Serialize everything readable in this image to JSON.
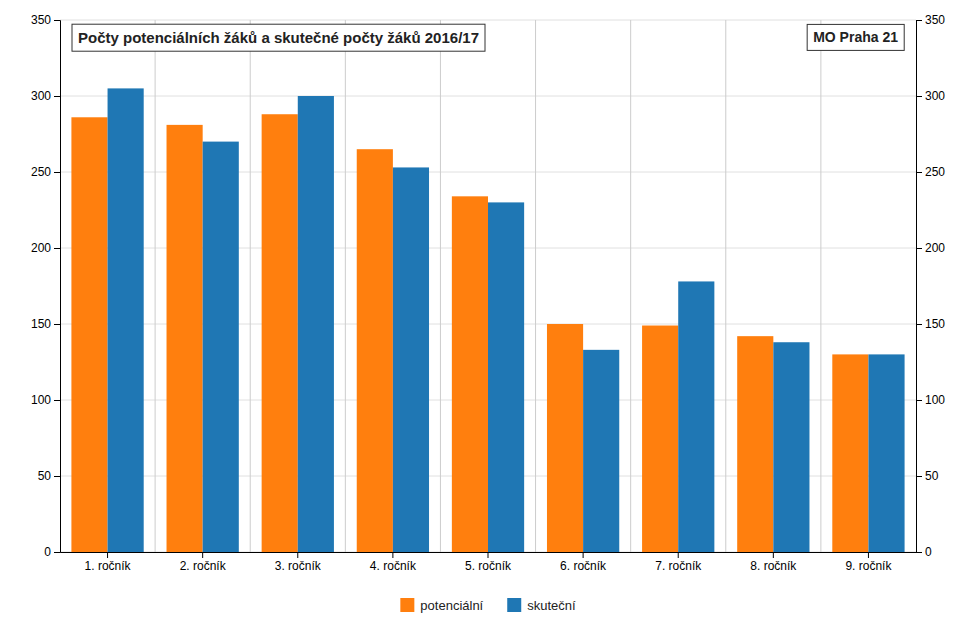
{
  "chart_data": {
    "type": "bar",
    "title": "Počty potenciálních žáků a skutečné počty žáků 2016/17",
    "subtitle": "MO Praha 21",
    "categories": [
      "1. ročník",
      "2. ročník",
      "3. ročník",
      "4. ročník",
      "5. ročník",
      "6. ročník",
      "7. ročník",
      "8. ročník",
      "9. ročník"
    ],
    "series": [
      {
        "name": "potenciální",
        "color": "#ff7f0e",
        "values": [
          286,
          281,
          288,
          265,
          234,
          150,
          149,
          142,
          130
        ]
      },
      {
        "name": "skuteční",
        "color": "#1f77b4",
        "values": [
          305,
          270,
          300,
          253,
          230,
          133,
          178,
          138,
          130
        ]
      }
    ],
    "ylim": [
      0,
      350
    ],
    "yticks": [
      0,
      50,
      100,
      150,
      200,
      250,
      300,
      350
    ],
    "y2lim": [
      0,
      350
    ],
    "y2ticks": [
      0,
      50,
      100,
      150,
      200,
      250,
      300,
      350
    ],
    "grid": true,
    "legend": "bottom"
  }
}
